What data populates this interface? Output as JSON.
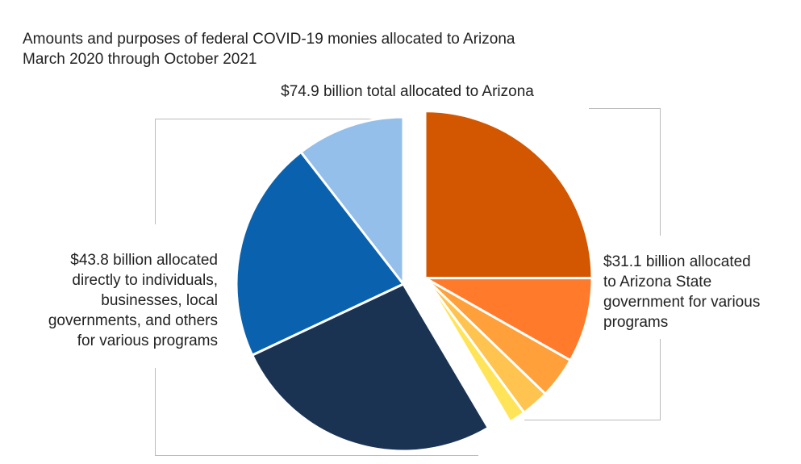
{
  "title": {
    "line1": "Amounts and purposes of federal COVID-19 monies allocated to Arizona",
    "line2": "March 2020 through October 2021"
  },
  "chart_data": {
    "type": "pie",
    "title": "Amounts and purposes of federal COVID-19 monies allocated to Arizona March 2020 through October 2021",
    "total_label": "$74.9 billion total allocated to Arizona",
    "total_billion": 74.9,
    "groups": [
      {
        "label": "$31.1 billion allocated to Arizona State government for various programs",
        "label_lines": [
          "$31.1 billion allocated",
          "to Arizona State",
          "government for various",
          "programs"
        ],
        "total_billion": 31.1,
        "exploded": true,
        "slices": [
          {
            "color": "#D35700",
            "share": 0.25
          },
          {
            "color": "#FF7A2A",
            "share": 0.082
          },
          {
            "color": "#FFA03A",
            "share": 0.04
          },
          {
            "color": "#FFC34F",
            "share": 0.027
          },
          {
            "color": "#FFE45A",
            "share": 0.016
          }
        ]
      },
      {
        "label": "$43.8 billion allocated directly to individuals, businesses, local governments, and others for various programs",
        "label_lines": [
          "$43.8 billion allocated",
          "directly to individuals,",
          "businesses, local",
          "governments, and others",
          "for various programs"
        ],
        "total_billion": 43.8,
        "exploded": false,
        "slices": [
          {
            "color": "#1A3353",
            "share": 0.265
          },
          {
            "color": "#0A62AE",
            "share": 0.215
          },
          {
            "color": "#93BFEA",
            "share": 0.105
          }
        ]
      }
    ]
  }
}
